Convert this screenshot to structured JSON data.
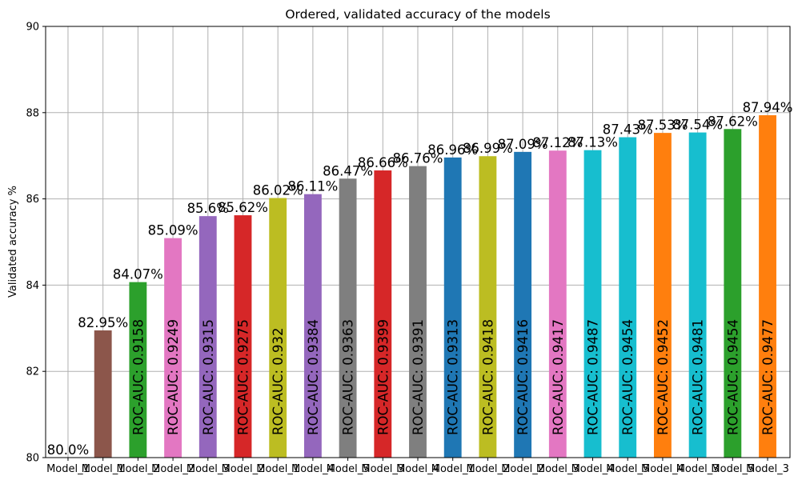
{
  "chart_data": {
    "type": "bar",
    "title": "Ordered, validated accuracy of the models",
    "xlabel": "",
    "ylabel": "Validated accuracy %",
    "ylim": [
      80,
      90
    ],
    "yticks": [
      80,
      82,
      84,
      86,
      88,
      90
    ],
    "grid": true,
    "categories": [
      "Model_1",
      "Model_1",
      "Model_2",
      "Model_2",
      "Model_3",
      "Model_2",
      "Model_1",
      "Model_4",
      "Model_5",
      "Model_3",
      "Model_4",
      "Model_1",
      "Model_2",
      "Model_2",
      "Model_3",
      "Model_4",
      "Model_5",
      "Model_4",
      "Model_3",
      "Model_5",
      "Model_3"
    ],
    "values": [
      80.0,
      82.95,
      84.07,
      85.09,
      85.6,
      85.62,
      86.02,
      86.11,
      86.47,
      86.66,
      86.76,
      86.96,
      86.99,
      87.09,
      87.12,
      87.13,
      87.43,
      87.53,
      87.54,
      87.62,
      87.94
    ],
    "value_labels": [
      "80.0%",
      "82.95%",
      "84.07%",
      "85.09%",
      "85.6%",
      "85.62%",
      "86.02%",
      "86.11%",
      "86.47%",
      "86.66%",
      "86.76%",
      "86.96%",
      "86.99%",
      "87.09%",
      "87.12%",
      "87.13%",
      "87.43%",
      "87.53%",
      "87.54%",
      "87.62%",
      "87.94%"
    ],
    "auc_labels": [
      "",
      "",
      "ROC-AUC: 0.9158",
      "ROC-AUC: 0.9249",
      "ROC-AUC: 0.9315",
      "ROC-AUC: 0.9275",
      "ROC-AUC: 0.932",
      "ROC-AUC: 0.9384",
      "ROC-AUC: 0.9363",
      "ROC-AUC: 0.9399",
      "ROC-AUC: 0.9391",
      "ROC-AUC: 0.9313",
      "ROC-AUC: 0.9418",
      "ROC-AUC: 0.9416",
      "ROC-AUC: 0.9417",
      "ROC-AUC: 0.9487",
      "ROC-AUC: 0.9454",
      "ROC-AUC: 0.9452",
      "ROC-AUC: 0.9481",
      "ROC-AUC: 0.9454",
      "ROC-AUC: 0.9477"
    ],
    "colors": [
      "#1f77b4",
      "#8c564b",
      "#2ca02c",
      "#e377c2",
      "#9467bd",
      "#d62728",
      "#bcbd22",
      "#9467bd",
      "#7f7f7f",
      "#d62728",
      "#7f7f7f",
      "#1f77b4",
      "#bcbd22",
      "#1f77b4",
      "#e377c2",
      "#17becf",
      "#17becf",
      "#ff7f0e",
      "#17becf",
      "#2ca02c",
      "#ff7f0e"
    ]
  }
}
